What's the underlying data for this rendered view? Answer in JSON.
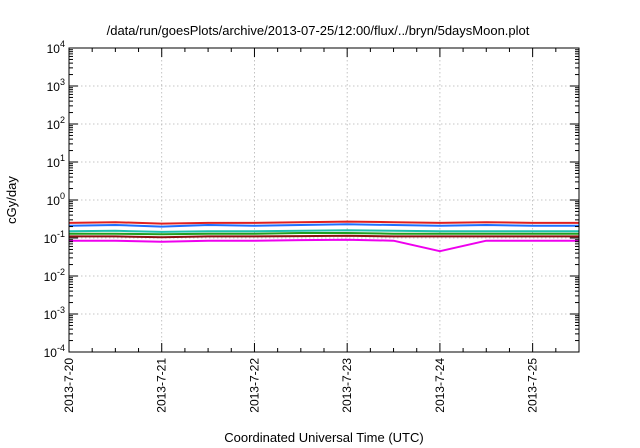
{
  "chart_data": {
    "type": "line",
    "title": "/data/run/goesPlots/archive/2013-07-25/12:00/flux/../bryn/5daysMoon.plot",
    "xlabel": "Coordinated Universal Time (UTC)",
    "ylabel": "cGy/day",
    "x_scale": "time",
    "y_scale": "log",
    "xlim": [
      "2013-07-20 00:00",
      "2013-07-25 12:00"
    ],
    "ylim": [
      0.0001,
      10000
    ],
    "grid": true,
    "legend": "none",
    "x_ticks": [
      "2013-7-20",
      "2013-7-21",
      "2013-7-22",
      "2013-7-23",
      "2013-7-24",
      "2013-7-25"
    ],
    "y_ticks": [
      {
        "value": 0.0001,
        "base": "10",
        "exp": "-4"
      },
      {
        "value": 0.001,
        "base": "10",
        "exp": "-3"
      },
      {
        "value": 0.01,
        "base": "10",
        "exp": "-2"
      },
      {
        "value": 0.1,
        "base": "10",
        "exp": "-1"
      },
      {
        "value": 1,
        "base": "10",
        "exp": "0"
      },
      {
        "value": 10,
        "base": "10",
        "exp": "1"
      },
      {
        "value": 100,
        "base": "10",
        "exp": "2"
      },
      {
        "value": 1000,
        "base": "10",
        "exp": "3"
      },
      {
        "value": 10000,
        "base": "10",
        "exp": "4"
      }
    ],
    "x": [
      "2013-07-20 00:00",
      "2013-07-20 12:00",
      "2013-07-21 00:00",
      "2013-07-21 12:00",
      "2013-07-22 00:00",
      "2013-07-22 12:00",
      "2013-07-23 00:00",
      "2013-07-23 12:00",
      "2013-07-24 00:00",
      "2013-07-24 12:00",
      "2013-07-25 00:00",
      "2013-07-25 12:00"
    ],
    "series": [
      {
        "color": "#e02020",
        "values": [
          0.25,
          0.26,
          0.24,
          0.25,
          0.25,
          0.26,
          0.27,
          0.26,
          0.25,
          0.26,
          0.25,
          0.25
        ]
      },
      {
        "color": "#1f6fff",
        "values": [
          0.21,
          0.22,
          0.2,
          0.22,
          0.21,
          0.22,
          0.23,
          0.22,
          0.21,
          0.22,
          0.21,
          0.21
        ]
      },
      {
        "color": "#1ec0b0",
        "values": [
          0.15,
          0.155,
          0.145,
          0.15,
          0.15,
          0.155,
          0.16,
          0.155,
          0.15,
          0.15,
          0.15,
          0.15
        ]
      },
      {
        "color": "#20a020",
        "values": [
          0.13,
          0.13,
          0.125,
          0.13,
          0.13,
          0.135,
          0.135,
          0.13,
          0.13,
          0.13,
          0.13,
          0.13
        ]
      },
      {
        "color": "#8b1010",
        "values": [
          0.11,
          0.11,
          0.105,
          0.11,
          0.11,
          0.112,
          0.115,
          0.11,
          0.11,
          0.11,
          0.11,
          0.11
        ]
      },
      {
        "color": "#ee00ee",
        "values": [
          0.085,
          0.085,
          0.08,
          0.085,
          0.085,
          0.088,
          0.09,
          0.085,
          0.045,
          0.085,
          0.085,
          0.085
        ]
      }
    ]
  }
}
